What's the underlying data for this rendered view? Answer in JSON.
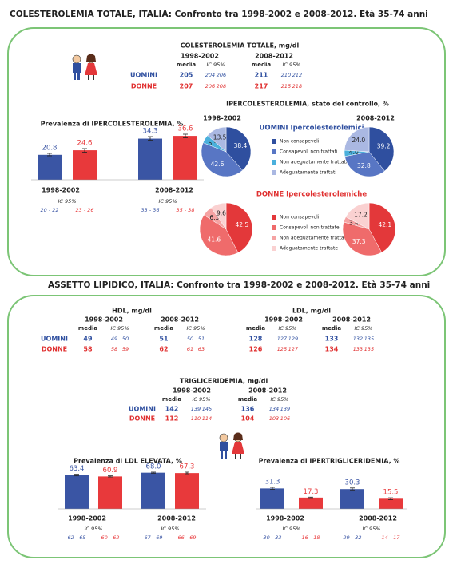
{
  "sections": [
    {
      "title": "COLESTEROLEMIA TOTALE, ITALIA: Confronto tra 1998-2002 e 2008-2012. Età 35-74 anni"
    },
    {
      "title": "ASSETTO LIPIDICO, ITALIA: Confronto tra 1998-2002 e 2008-2012. Età 35-74 anni"
    }
  ],
  "tables": [
    {
      "title": "COLESTEROLEMIA TOTALE, mg/dl",
      "periods": [
        "1998-2002",
        "2008-2012"
      ],
      "columns": [
        "media",
        "IC 95%"
      ],
      "row_labels": [
        "UOMINI",
        "DONNE"
      ],
      "rows": [
        [
          205,
          204,
          206,
          211,
          210,
          212
        ],
        [
          207,
          206,
          208,
          217,
          215,
          218
        ]
      ]
    },
    {
      "title": "HDL, mg/dl",
      "periods": [
        "1998-2002",
        "2008-2012"
      ],
      "columns": [
        "media",
        "IC 95%"
      ],
      "row_labels": [
        "UOMINI",
        "DONNE"
      ],
      "rows": [
        [
          49,
          49,
          50,
          51,
          50,
          51
        ],
        [
          58,
          58,
          59,
          62,
          61,
          63
        ]
      ]
    },
    {
      "title": "LDL, mg/dl",
      "periods": [
        "1998-2002",
        "2008-2012"
      ],
      "columns": [
        "media",
        "IC 95%"
      ],
      "rows": [
        [
          128,
          127,
          129,
          133,
          132,
          135
        ],
        [
          126,
          125,
          127,
          134,
          133,
          135
        ]
      ]
    },
    {
      "title": "TRIGLICERIDEMIA, mg/dl",
      "periods": [
        "1998-2002",
        "2008-2012"
      ],
      "columns": [
        "media",
        "IC 95%"
      ],
      "row_labels": [
        "UOMINI",
        "DONNE"
      ],
      "rows": [
        [
          142,
          139,
          145,
          136,
          134,
          139
        ],
        [
          112,
          110,
          114,
          104,
          103,
          106
        ]
      ]
    }
  ],
  "chart_data": [
    {
      "type": "bar",
      "title": "Prevalenza di IPERCOLESTEROLEMIA, %",
      "categories": [
        "1998-2002",
        "2008-2012"
      ],
      "ci_caption": "IC 95%",
      "series": [
        {
          "color": "#3a55a4",
          "values": [
            20.8,
            34.3
          ],
          "ci_low": [
            20,
            33
          ],
          "ci_high": [
            22,
            36
          ],
          "ci_labels": [
            "20 - 22",
            "33 - 36"
          ]
        },
        {
          "color": "#e8393b",
          "values": [
            24.6,
            36.6
          ],
          "ci_low": [
            23,
            35
          ],
          "ci_high": [
            26,
            38
          ],
          "ci_labels": [
            "23 - 26",
            "35 - 38"
          ]
        }
      ]
    },
    {
      "type": "pie",
      "title": "IPERCOLESTEROLEMIA, stato del controllo, %",
      "categories": [
        "1998-2002",
        "2008-2012"
      ],
      "groups": [
        {
          "name": "UOMINI Ipercolesterolemici",
          "color": "#3050a0",
          "labels": [
            "Non consapevoli",
            "Consapevoli non trattati",
            "Non adeguatamente trattati",
            "Adeguatamente trattati"
          ],
          "colors": [
            "#2f4f9f",
            "#5876c4",
            "#4bb0dc",
            "#aab8e2"
          ],
          "pies": [
            {
              "values": [
                38.4,
                42.6,
                5.5,
                13.5
              ]
            },
            {
              "values": [
                39.2,
                32.8,
                4,
                24
              ],
              "value_labels": [
                "39.2",
                "32.8",
                "4.0",
                "24.0"
              ]
            }
          ]
        },
        {
          "name": "DONNE Ipercolesterolemiche",
          "color": "#e03030",
          "labels": [
            "Non consapevoli",
            "Consapevoli non trattate",
            "Non adeguatamente trattate",
            "Adeguatamente trattate"
          ],
          "colors": [
            "#e3383a",
            "#ef6b6b",
            "#f5a3a3",
            "#fad1d1"
          ],
          "pies": [
            {
              "values": [
                42.5,
                41.6,
                6.3,
                9.6
              ]
            },
            {
              "values": [
                42.1,
                37.3,
                3.4,
                17.2
              ]
            }
          ]
        }
      ]
    },
    {
      "type": "bar",
      "title": "Prevalenza di LDL ELEVATA, %",
      "categories": [
        "1998-2002",
        "2008-2012"
      ],
      "ci_caption": "IC 95%",
      "series": [
        {
          "color": "#3a55a4",
          "values": [
            63.4,
            68.0
          ],
          "value_labels": [
            "63.4",
            "68.0"
          ],
          "ci_low": [
            62,
            67
          ],
          "ci_high": [
            65,
            69
          ],
          "ci_labels": [
            "62 - 65",
            "67 - 69"
          ]
        },
        {
          "color": "#e8393b",
          "values": [
            60.9,
            67.3
          ],
          "ci_low": [
            60,
            66
          ],
          "ci_high": [
            62,
            69
          ],
          "ci_labels": [
            "60 - 62",
            "66 - 69"
          ]
        }
      ]
    },
    {
      "type": "bar",
      "title": "Prevalenza di IPERTRIGLICERIDEMIA, %",
      "categories": [
        "1998-2002",
        "2008-2012"
      ],
      "ci_caption": "IC 95%",
      "series": [
        {
          "color": "#3a55a4",
          "values": [
            31.3,
            30.3
          ],
          "ci_low": [
            30,
            29
          ],
          "ci_high": [
            33,
            32
          ],
          "ci_labels": [
            "30 - 33",
            "29 - 32"
          ]
        },
        {
          "color": "#e8393b",
          "values": [
            17.3,
            15.5
          ],
          "ci_low": [
            16,
            14
          ],
          "ci_high": [
            18,
            17
          ],
          "ci_labels": [
            "16 - 18",
            "14 - 17"
          ]
        }
      ]
    }
  ]
}
